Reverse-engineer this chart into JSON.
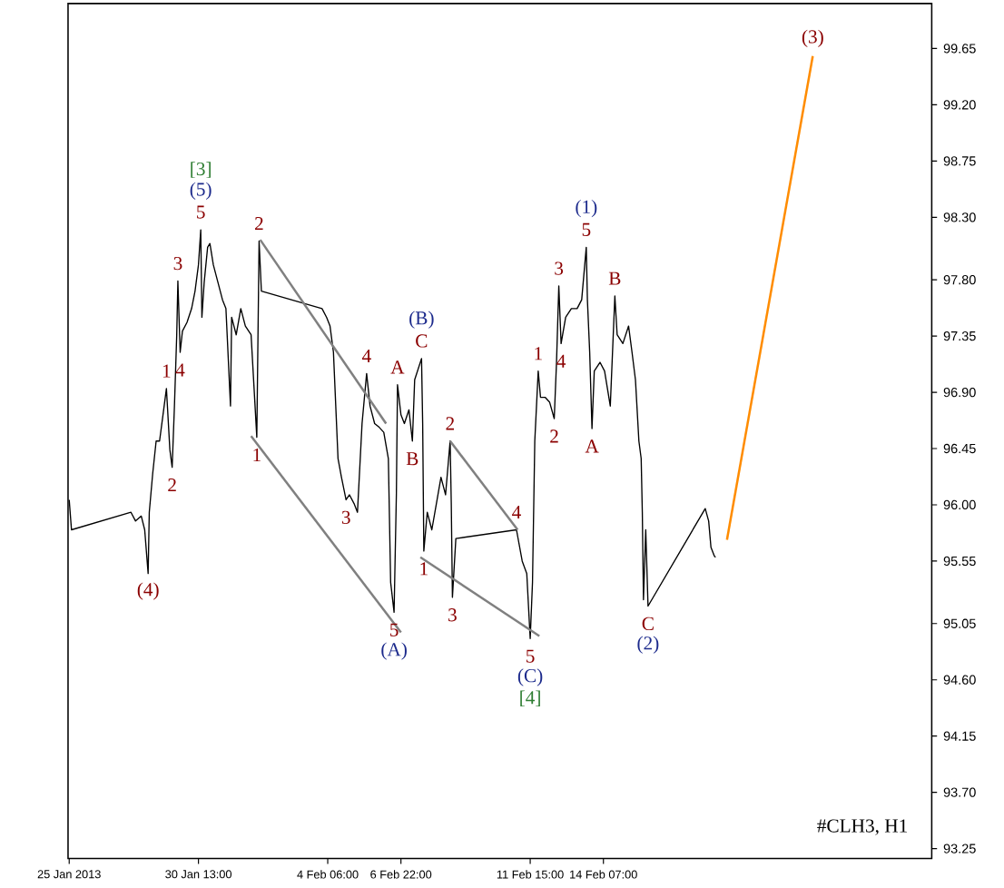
{
  "chart_data": {
    "type": "line",
    "xlim": [
      "2013-01-25T19:00",
      "2013-02-26T06:00"
    ],
    "ylim": [
      93.17,
      100.01
    ],
    "xticks": [
      {
        "value": "2013-01-25T20:00",
        "label": "25 Jan 2013"
      },
      {
        "value": "2013-01-30T13:00",
        "label": "30 Jan 13:00"
      },
      {
        "value": "2013-02-04T06:00",
        "label": "4 Feb 06:00"
      },
      {
        "value": "2013-02-06T22:00",
        "label": "6 Feb 22:00"
      },
      {
        "value": "2013-02-11T15:00",
        "label": "11 Feb 15:00"
      },
      {
        "value": "2013-02-14T07:00",
        "label": "14 Feb 07:00"
      }
    ],
    "yticks": [
      {
        "value": 93.25,
        "label": "93.25"
      },
      {
        "value": 93.7,
        "label": "93.70"
      },
      {
        "value": 94.15,
        "label": "94.15"
      },
      {
        "value": 94.6,
        "label": "94.60"
      },
      {
        "value": 95.05,
        "label": "95.05"
      },
      {
        "value": 95.55,
        "label": "95.55"
      },
      {
        "value": 96,
        "label": "96.00"
      },
      {
        "value": 96.45,
        "label": "96.45"
      },
      {
        "value": 96.9,
        "label": "96.90"
      },
      {
        "value": 97.35,
        "label": "97.35"
      },
      {
        "value": 97.8,
        "label": "97.80"
      },
      {
        "value": 98.3,
        "label": "98.30"
      },
      {
        "value": 98.75,
        "label": "98.75"
      },
      {
        "value": 99.2,
        "label": "99.20"
      },
      {
        "value": 99.65,
        "label": "99.65"
      }
    ],
    "grid": false,
    "series": [
      {
        "color": "#000000",
        "x": [
          "2013-01-25T20:00",
          "2013-01-25T22:00",
          "2013-01-28T02:00",
          "2013-01-28T06:00",
          "2013-01-28T11:00",
          "2013-01-28T14:00",
          "2013-01-28T17:00",
          "2013-01-28T18:00",
          "2013-01-28T21:00",
          "2013-01-29T00:00",
          "2013-01-29T03:00",
          "2013-01-29T06:00",
          "2013-01-29T09:00",
          "2013-01-29T12:00",
          "2013-01-29T14:00",
          "2013-01-29T16:00",
          "2013-01-29T18:00",
          "2013-01-29T19:00",
          "2013-01-29T21:00",
          "2013-01-29T23:00",
          "2013-01-30T03:00",
          "2013-01-30T07:00",
          "2013-01-30T10:00",
          "2013-01-30T13:00",
          "2013-01-30T15:00",
          "2013-01-30T16:00",
          "2013-01-30T18:00",
          "2013-01-30T21:00",
          "2013-01-30T23:00",
          "2013-01-31T02:00",
          "2013-01-31T06:00",
          "2013-01-31T10:00",
          "2013-01-31T13:00",
          "2013-01-31T17:00",
          "2013-01-31T18:00",
          "2013-01-31T22:00",
          "2013-02-01T02:00",
          "2013-02-01T06:00",
          "2013-02-01T11:00",
          "2013-02-01T16:00",
          "2013-02-01T18:00",
          "2013-02-01T20:00",
          "2013-02-04T01:00",
          "2013-02-04T05:00",
          "2013-02-04T08:00",
          "2013-02-04T11:00",
          "2013-02-04T15:00",
          "2013-02-04T18:00",
          "2013-02-04T22:00",
          "2013-02-05T01:00",
          "2013-02-05T05:00",
          "2013-02-05T08:00",
          "2013-02-05T12:00",
          "2013-02-05T16:00",
          "2013-02-05T19:00",
          "2013-02-05T23:00",
          "2013-02-06T03:00",
          "2013-02-06T07:00",
          "2013-02-06T11:00",
          "2013-02-06T13:00",
          "2013-02-06T16:00",
          "2013-02-06T18:00",
          "2013-02-06T19:00",
          "2013-02-06T22:00",
          "2013-02-07T01:00",
          "2013-02-07T05:00",
          "2013-02-07T08:00",
          "2013-02-07T10:00",
          "2013-02-07T16:00",
          "2013-02-07T17:00",
          "2013-02-07T18:00",
          "2013-02-07T21:00",
          "2013-02-08T01:00",
          "2013-02-08T05:00",
          "2013-02-08T09:00",
          "2013-02-08T13:00",
          "2013-02-08T17:00",
          "2013-02-08T18:00",
          "2013-02-08T19:00",
          "2013-02-08T22:00",
          "2013-02-11T03:00",
          "2013-02-11T08:00",
          "2013-02-11T12:00",
          "2013-02-11T15:00",
          "2013-02-11T17:00",
          "2013-02-11T19:00",
          "2013-02-11T22:00",
          "2013-02-12T00:00",
          "2013-02-12T04:00",
          "2013-02-12T08:00",
          "2013-02-12T12:00",
          "2013-02-12T14:00",
          "2013-02-12T16:00",
          "2013-02-12T18:00",
          "2013-02-12T22:00",
          "2013-02-13T03:00",
          "2013-02-13T08:00",
          "2013-02-13T12:00",
          "2013-02-13T16:00",
          "2013-02-13T17:00",
          "2013-02-13T19:00",
          "2013-02-13T21:00",
          "2013-02-13T23:00",
          "2013-02-14T04:00",
          "2013-02-14T08:00",
          "2013-02-14T13:00",
          "2013-02-14T17:00",
          "2013-02-14T19:00",
          "2013-02-15T00:00",
          "2013-02-15T05:00",
          "2013-02-15T08:00",
          "2013-02-15T11:00",
          "2013-02-15T14:00",
          "2013-02-15T16:00",
          "2013-02-15T17:00",
          "2013-02-15T18:00",
          "2013-02-15T20:00",
          "2013-02-15T22:00",
          "2013-02-18T00:00",
          "2013-02-18T03:00",
          "2013-02-18T05:00",
          "2013-02-18T08:00",
          "2013-02-18T09:00"
        ],
        "values": [
          96.04,
          95.8,
          95.94,
          95.87,
          95.91,
          95.8,
          95.45,
          95.94,
          96.25,
          96.51,
          96.51,
          96.72,
          96.93,
          96.44,
          96.3,
          96.79,
          97.36,
          97.79,
          97.22,
          97.39,
          97.46,
          97.57,
          97.71,
          97.92,
          98.2,
          97.5,
          97.78,
          98.06,
          98.09,
          97.92,
          97.78,
          97.64,
          97.57,
          96.79,
          97.5,
          97.36,
          97.57,
          97.43,
          97.36,
          96.54,
          98.11,
          97.71,
          97.57,
          97.5,
          97.43,
          97.22,
          96.37,
          96.22,
          96.04,
          96.08,
          96.01,
          95.94,
          96.65,
          97.05,
          96.79,
          96.65,
          96.62,
          96.58,
          96.37,
          95.38,
          95.14,
          96.08,
          96.96,
          96.72,
          96.65,
          96.76,
          96.51,
          97.0,
          97.17,
          96.65,
          95.63,
          95.94,
          95.8,
          96.01,
          96.22,
          96.08,
          96.51,
          96.01,
          95.26,
          95.73,
          95.8,
          95.55,
          95.45,
          94.93,
          95.38,
          96.51,
          97.07,
          96.86,
          96.86,
          96.82,
          96.69,
          97.14,
          97.75,
          97.29,
          97.5,
          97.57,
          97.57,
          97.64,
          98.06,
          97.64,
          97.22,
          96.61,
          97.07,
          97.14,
          97.07,
          96.79,
          97.67,
          97.36,
          97.29,
          97.43,
          97.22,
          97.0,
          96.51,
          96.37,
          95.94,
          95.24,
          95.8,
          95.19,
          95.97,
          95.87,
          95.66,
          95.59,
          95.58
        ]
      },
      {
        "color": "#808080",
        "x": [
          "2013-02-01T19:00",
          "2013-02-06T09:00"
        ],
        "values": [
          98.12,
          96.65
        ]
      },
      {
        "color": "#808080",
        "x": [
          "2013-02-01T11:00",
          "2013-02-06T22:00"
        ],
        "values": [
          96.55,
          94.98
        ]
      },
      {
        "color": "#808080",
        "x": [
          "2013-02-08T17:00",
          "2013-02-11T04:00"
        ],
        "values": [
          96.51,
          95.8
        ]
      },
      {
        "color": "#808080",
        "x": [
          "2013-02-07T15:00",
          "2013-02-11T23:00"
        ],
        "values": [
          95.58,
          94.95
        ]
      },
      {
        "color": "#ff8c00",
        "x": [
          "2013-02-18T19:00",
          "2013-02-21T22:00"
        ],
        "values": [
          95.72,
          99.59
        ]
      }
    ],
    "annotations": [
      {
        "text": "5",
        "x": "2013-01-30T15:00",
        "y": 98.2
      },
      {
        "text": "(5)",
        "x": "2013-01-30T15:00",
        "y": 98.2
      },
      {
        "text": "[3]",
        "x": "2013-01-30T15:00",
        "y": 98.2
      },
      {
        "text": "3",
        "x": "2013-01-29T19:00",
        "y": 97.79
      },
      {
        "text": "1",
        "x": "2013-01-29T09:00",
        "y": 96.93
      },
      {
        "text": "4",
        "x": "2013-01-29T21:00",
        "y": 97.22
      },
      {
        "text": "2",
        "x": "2013-01-29T14:00",
        "y": 96.3
      },
      {
        "text": "(4)",
        "x": "2013-01-28T17:00",
        "y": 95.45
      },
      {
        "text": "2",
        "x": "2013-02-01T18:00",
        "y": 98.11
      },
      {
        "text": "1",
        "x": "2013-02-01T16:00",
        "y": 96.54
      },
      {
        "text": "3",
        "x": "2013-02-04T22:00",
        "y": 96.04
      },
      {
        "text": "4",
        "x": "2013-02-05T16:00",
        "y": 97.05
      },
      {
        "text": "5",
        "x": "2013-02-06T16:00",
        "y": 95.14
      },
      {
        "text": "(A)",
        "x": "2013-02-06T16:00",
        "y": 95.14
      },
      {
        "text": "A",
        "x": "2013-02-06T19:00",
        "y": 96.96
      },
      {
        "text": "B",
        "x": "2013-02-07T08:00",
        "y": 96.51
      },
      {
        "text": "C",
        "x": "2013-02-07T16:00",
        "y": 97.17
      },
      {
        "text": "(B)",
        "x": "2013-02-07T16:00",
        "y": 97.17
      },
      {
        "text": "1",
        "x": "2013-02-07T18:00",
        "y": 95.63
      },
      {
        "text": "2",
        "x": "2013-02-08T17:00",
        "y": 96.51
      },
      {
        "text": "3",
        "x": "2013-02-08T19:00",
        "y": 95.26
      },
      {
        "text": "4",
        "x": "2013-02-11T03:00",
        "y": 95.8
      },
      {
        "text": "5",
        "x": "2013-02-11T15:00",
        "y": 94.93
      },
      {
        "text": "(C)",
        "x": "2013-02-11T15:00",
        "y": 94.93
      },
      {
        "text": "[4]",
        "x": "2013-02-11T15:00",
        "y": 94.93
      },
      {
        "text": "1",
        "x": "2013-02-11T22:00",
        "y": 97.07
      },
      {
        "text": "2",
        "x": "2013-02-12T12:00",
        "y": 96.69
      },
      {
        "text": "3",
        "x": "2013-02-12T16:00",
        "y": 97.75
      },
      {
        "text": "4",
        "x": "2013-02-12T18:00",
        "y": 97.29
      },
      {
        "text": "5",
        "x": "2013-02-13T16:00",
        "y": 98.06
      },
      {
        "text": "(1)",
        "x": "2013-02-13T16:00",
        "y": 98.06
      },
      {
        "text": "A",
        "x": "2013-02-13T21:00",
        "y": 96.61
      },
      {
        "text": "B",
        "x": "2013-02-14T17:00",
        "y": 97.67
      },
      {
        "text": "C",
        "x": "2013-02-15T22:00",
        "y": 95.19
      },
      {
        "text": "(2)",
        "x": "2013-02-15T22:00",
        "y": 95.19
      },
      {
        "text": "(3)",
        "x": "2013-02-21T22:00",
        "y": 99.59
      },
      "#CLH3, H1"
    ]
  }
}
